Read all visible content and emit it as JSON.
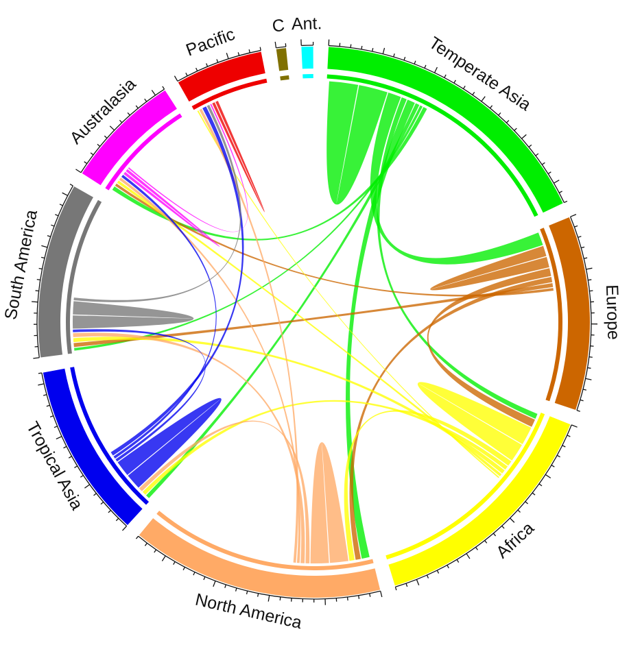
{
  "sectors": [
    {
      "name": "Temperate Asia",
      "color": "#00ee00",
      "size": 30
    },
    {
      "name": "Europe",
      "color": "#cc6600",
      "size": 20
    },
    {
      "name": "Africa",
      "color": "#ffff00",
      "size": 25
    },
    {
      "name": "North America",
      "color": "#ffaa66",
      "size": 26
    },
    {
      "name": "Tropical Asia",
      "color": "#0000ee",
      "size": 18
    },
    {
      "name": "South America",
      "color": "#777777",
      "size": 18
    },
    {
      "name": "Australasia",
      "color": "#ff00ff",
      "size": 12
    },
    {
      "name": "Pacific",
      "color": "#ee0000",
      "size": 9
    },
    {
      "name": "C",
      "color": "#807000",
      "size": 1
    },
    {
      "name": "Ant.",
      "color": "#00ffff",
      "size": 1.2
    }
  ],
  "flows": [
    {
      "from": "Temperate Asia",
      "to": "Temperate Asia",
      "value": 11
    },
    {
      "from": "Temperate Asia",
      "to": "Europe",
      "value": 5
    },
    {
      "from": "Temperate Asia",
      "to": "Africa",
      "value": 2
    },
    {
      "from": "Temperate Asia",
      "to": "North America",
      "value": 3
    },
    {
      "from": "Temperate Asia",
      "to": "Tropical Asia",
      "value": 1.5
    },
    {
      "from": "Temperate Asia",
      "to": "South America",
      "value": 1
    },
    {
      "from": "Temperate Asia",
      "to": "Australasia",
      "value": 1.5
    },
    {
      "from": "Europe",
      "to": "Europe",
      "value": 4
    },
    {
      "from": "Europe",
      "to": "Africa",
      "value": 3
    },
    {
      "from": "Europe",
      "to": "North America",
      "value": 2
    },
    {
      "from": "Europe",
      "to": "South America",
      "value": 1.5
    },
    {
      "from": "Europe",
      "to": "Australasia",
      "value": 1
    },
    {
      "from": "Africa",
      "to": "Africa",
      "value": 7
    },
    {
      "from": "Africa",
      "to": "North America",
      "value": 2
    },
    {
      "from": "Africa",
      "to": "Tropical Asia",
      "value": 1.5
    },
    {
      "from": "Africa",
      "to": "South America",
      "value": 1.5
    },
    {
      "from": "Africa",
      "to": "Australasia",
      "value": 1
    },
    {
      "from": "Africa",
      "to": "Pacific",
      "value": 0.5
    },
    {
      "from": "North America",
      "to": "North America",
      "value": 7
    },
    {
      "from": "North America",
      "to": "Tropical Asia",
      "value": 1.5
    },
    {
      "from": "North America",
      "to": "South America",
      "value": 1.5
    },
    {
      "from": "North America",
      "to": "Australasia",
      "value": 1
    },
    {
      "from": "North America",
      "to": "Pacific",
      "value": 1
    },
    {
      "from": "Tropical Asia",
      "to": "Tropical Asia",
      "value": 6
    },
    {
      "from": "Tropical Asia",
      "to": "South America",
      "value": 1
    },
    {
      "from": "Tropical Asia",
      "to": "Australasia",
      "value": 1
    },
    {
      "from": "Tropical Asia",
      "to": "Pacific",
      "value": 1.5
    },
    {
      "from": "South America",
      "to": "South America",
      "value": 5
    },
    {
      "from": "South America",
      "to": "Pacific",
      "value": 1
    },
    {
      "from": "Australasia",
      "to": "Australasia",
      "value": 1
    },
    {
      "from": "Australasia",
      "to": "Pacific",
      "value": 0.5
    },
    {
      "from": "Pacific",
      "to": "Pacific",
      "value": 1
    }
  ]
}
